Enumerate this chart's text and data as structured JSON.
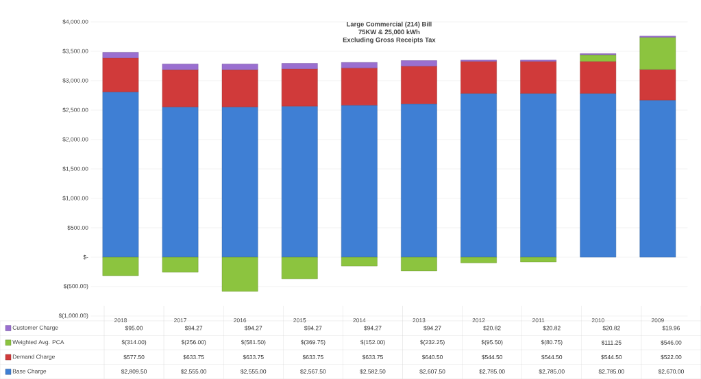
{
  "chart_data": {
    "type": "bar",
    "stacked": true,
    "title": "Large Commercial (214) Bill",
    "subtitle": "75KW & 25,000 kWh",
    "annotations": [
      "Excluding Gross Receipts Tax"
    ],
    "categories": [
      "2018",
      "2017",
      "2016",
      "2015",
      "2014",
      "2013",
      "2012",
      "2011",
      "2010",
      "2009"
    ],
    "series": [
      {
        "name": "Base Charge",
        "color": "#3f7fd4",
        "values": [
          2809.5,
          2555.0,
          2555.0,
          2567.5,
          2582.5,
          2607.5,
          2785.0,
          2785.0,
          2785.0,
          2670.0
        ],
        "value_labels": [
          "$2,809.50",
          "$2,555.00",
          "$2,555.00",
          "$2,567.50",
          "$2,582.50",
          "$2,607.50",
          "$2,785.00",
          "$2,785.00",
          "$2,785.00",
          "$2,670.00"
        ]
      },
      {
        "name": "Demand Charge",
        "color": "#d03a3a",
        "values": [
          577.5,
          633.75,
          633.75,
          633.75,
          633.75,
          640.5,
          544.5,
          544.5,
          544.5,
          522.0
        ],
        "value_labels": [
          "$577.50",
          "$633.75",
          "$633.75",
          "$633.75",
          "$633.75",
          "$640.50",
          "$544.50",
          "$544.50",
          "$544.50",
          "$522.00"
        ]
      },
      {
        "name": "Weighted  Avg. PCA",
        "color": "#8cc43f",
        "values": [
          -314.0,
          -256.0,
          -581.5,
          -369.75,
          -152.0,
          -232.25,
          -95.5,
          -80.75,
          111.25,
          546.0
        ],
        "value_labels": [
          "$(314.00)",
          "$(256.00)",
          "$(581.50)",
          "$(369.75)",
          "$(152.00)",
          "$(232.25)",
          "$(95.50)",
          "$(80.75)",
          "$111.25",
          "$546.00"
        ]
      },
      {
        "name": "Customer Charge",
        "color": "#9a6fd0",
        "values": [
          95.0,
          94.27,
          94.27,
          94.27,
          94.27,
          94.27,
          20.82,
          20.82,
          20.82,
          19.96
        ],
        "value_labels": [
          "$95.00",
          "$94.27",
          "$94.27",
          "$94.27",
          "$94.27",
          "$94.27",
          "$20.82",
          "$20.82",
          "$20.82",
          "$19.96"
        ]
      }
    ],
    "ylim": [
      -1000,
      4000
    ],
    "yticks": [
      {
        "value": -1000,
        "label": "$(1,000.00)"
      },
      {
        "value": -500,
        "label": "$(500.00)"
      },
      {
        "value": 0,
        "label": "$-"
      },
      {
        "value": 500,
        "label": "$500.00"
      },
      {
        "value": 1000,
        "label": "$1,000.00"
      },
      {
        "value": 1500,
        "label": "$1,500.00"
      },
      {
        "value": 2000,
        "label": "$2,000.00"
      },
      {
        "value": 2500,
        "label": "$2,500.00"
      },
      {
        "value": 3000,
        "label": "$3,000.00"
      },
      {
        "value": 3500,
        "label": "$3,500.00"
      },
      {
        "value": 4000,
        "label": "$4,000.00"
      }
    ],
    "grid": "y",
    "legend": "bottom"
  }
}
